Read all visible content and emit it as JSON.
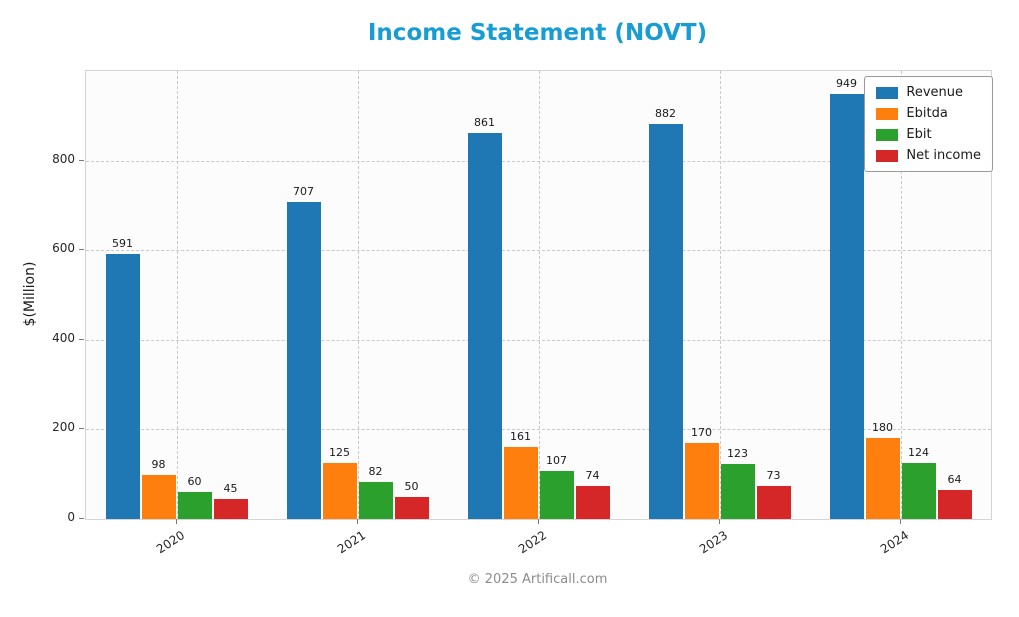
{
  "title": "Income Statement (NOVT)",
  "footer": "© 2025 Artificall.com",
  "colors": {
    "title": "#189cd4",
    "revenue": "#1f77b4",
    "ebitda": "#ff7f0e",
    "ebit": "#2ca02c",
    "net_income": "#d62728"
  },
  "chart_data": {
    "type": "bar",
    "title": "Income Statement (NOVT)",
    "xlabel": "",
    "ylabel": "$(Million)",
    "categories": [
      "2020",
      "2021",
      "2022",
      "2023",
      "2024"
    ],
    "series": [
      {
        "name": "Revenue",
        "color": "#1f77b4",
        "values": [
          591,
          707,
          861,
          882,
          949
        ]
      },
      {
        "name": "Ebitda",
        "color": "#ff7f0e",
        "values": [
          98,
          125,
          161,
          170,
          180
        ]
      },
      {
        "name": "Ebit",
        "color": "#2ca02c",
        "values": [
          60,
          82,
          107,
          123,
          124
        ]
      },
      {
        "name": "Net income",
        "color": "#d62728",
        "values": [
          45,
          50,
          74,
          73,
          64
        ]
      }
    ],
    "ylim": [
      0,
      1000
    ],
    "yticks": [
      0,
      200,
      400,
      600,
      800
    ],
    "grid": true,
    "grid_style": "dashed",
    "bar_labels": true,
    "legend_position": "top-right"
  }
}
